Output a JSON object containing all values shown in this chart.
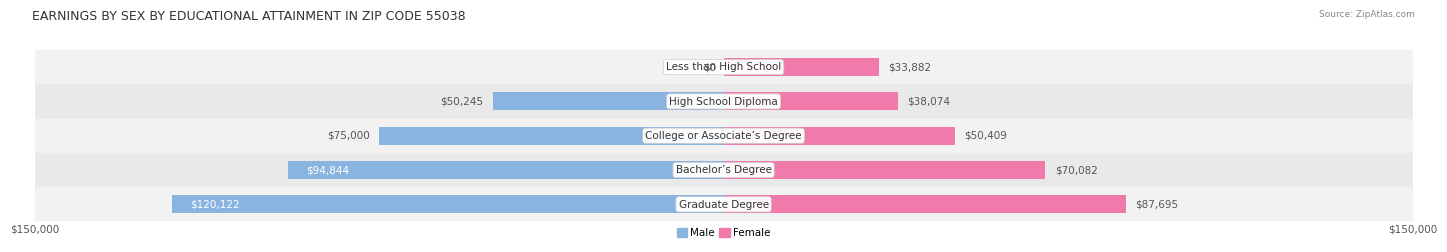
{
  "title": "EARNINGS BY SEX BY EDUCATIONAL ATTAINMENT IN ZIP CODE 55038",
  "source": "Source: ZipAtlas.com",
  "categories": [
    "Less than High School",
    "High School Diploma",
    "College or Associate’s Degree",
    "Bachelor’s Degree",
    "Graduate Degree"
  ],
  "male_values": [
    0,
    50245,
    75000,
    94844,
    120122
  ],
  "female_values": [
    33882,
    38074,
    50409,
    70082,
    87695
  ],
  "male_color": "#8ab4e0",
  "female_color": "#f07aaa",
  "max_value": 150000,
  "xlabel_left": "$150,000",
  "xlabel_right": "$150,000",
  "legend_male": "Male",
  "legend_female": "Female",
  "title_fontsize": 9,
  "label_fontsize": 7.5,
  "bar_height": 0.52,
  "background_color": "#ffffff",
  "row_colors": [
    "#f2f2f2",
    "#e9e9e9"
  ]
}
